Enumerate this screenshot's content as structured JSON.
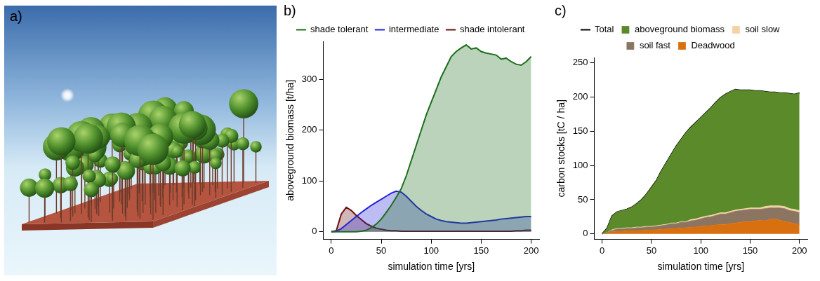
{
  "image_panel": {
    "panel": "a)"
  },
  "chart_data": [
    {
      "panel": "b)",
      "type": "area",
      "stacked": false,
      "grid": false,
      "legend": "top",
      "xlabel": "simulation time [yrs]",
      "ylabel": "aboveground biomass [t/ha]",
      "xlim": [
        -8,
        208
      ],
      "xticks": [
        0,
        50,
        100,
        150,
        200
      ],
      "ylim": [
        -15,
        375
      ],
      "yticks": [
        0,
        100,
        200,
        300
      ],
      "x": [
        0,
        5,
        10,
        15,
        20,
        25,
        30,
        35,
        40,
        45,
        50,
        55,
        60,
        65,
        70,
        75,
        80,
        85,
        90,
        95,
        100,
        105,
        110,
        115,
        120,
        125,
        130,
        135,
        140,
        145,
        150,
        155,
        160,
        165,
        170,
        175,
        180,
        185,
        190,
        195,
        200
      ],
      "series": [
        {
          "name": "shade tolerant",
          "color": "#1b6e1b",
          "values": [
            0,
            0,
            0,
            0,
            0,
            0,
            1,
            3,
            8,
            15,
            25,
            38,
            52,
            68,
            85,
            110,
            140,
            170,
            200,
            230,
            255,
            280,
            305,
            325,
            345,
            355,
            362,
            368,
            360,
            362,
            355,
            352,
            350,
            348,
            340,
            342,
            335,
            330,
            328,
            335,
            345
          ]
        },
        {
          "name": "intermediate",
          "color": "#2424d6",
          "values": [
            0,
            1,
            6,
            14,
            22,
            30,
            38,
            45,
            52,
            58,
            64,
            70,
            76,
            80,
            78,
            70,
            60,
            50,
            42,
            35,
            30,
            25,
            22,
            20,
            19,
            18,
            17,
            17,
            18,
            19,
            20,
            21,
            22,
            23,
            25,
            26,
            27,
            28,
            29,
            30,
            30
          ]
        },
        {
          "name": "shade intolerant",
          "color": "#6b0f0f",
          "values": [
            0,
            2,
            35,
            48,
            42,
            32,
            24,
            16,
            11,
            7,
            5,
            3,
            2,
            2,
            1,
            1,
            1,
            1,
            1,
            1,
            1,
            1,
            1,
            1,
            1,
            1,
            1,
            1,
            1,
            1,
            1,
            1,
            1,
            1,
            1,
            1,
            1,
            2,
            2,
            3,
            3
          ]
        }
      ]
    },
    {
      "panel": "c)",
      "type": "area",
      "stacked": true,
      "grid": false,
      "legend": "top",
      "xlabel": "simulation time [yrs]",
      "ylabel": "carbon stocks [tC / ha]",
      "xlim": [
        -8,
        208
      ],
      "xticks": [
        0,
        50,
        100,
        150,
        200
      ],
      "ylim": [
        -8,
        258
      ],
      "yticks": [
        0,
        50,
        100,
        150,
        200,
        250
      ],
      "x": [
        0,
        5,
        10,
        15,
        20,
        25,
        30,
        35,
        40,
        45,
        50,
        55,
        60,
        65,
        70,
        75,
        80,
        85,
        90,
        95,
        100,
        105,
        110,
        115,
        120,
        125,
        130,
        135,
        140,
        145,
        150,
        155,
        160,
        165,
        170,
        175,
        180,
        185,
        190,
        195,
        200
      ],
      "series": [
        {
          "name": "Total",
          "type": "line",
          "color": "#000000",
          "values": [
            0,
            8,
            26,
            32,
            34,
            36,
            39,
            44,
            50,
            58,
            68,
            78,
            92,
            104,
            116,
            128,
            138,
            148,
            156,
            163,
            170,
            177,
            184,
            192,
            199,
            204,
            208,
            211,
            210,
            210,
            210,
            209,
            209,
            208,
            207,
            207,
            206,
            206,
            205,
            204,
            206
          ]
        },
        {
          "name": "aboveground biomass",
          "color": "#5b8a2b",
          "values": [
            0,
            6,
            20,
            24,
            26,
            27,
            30,
            34,
            40,
            47,
            57,
            66,
            79,
            90,
            100,
            112,
            120,
            130,
            135,
            141,
            146,
            151,
            157,
            163,
            168,
            173,
            175,
            176,
            174,
            173,
            172,
            171,
            171,
            168,
            166,
            166,
            165,
            166,
            168,
            168,
            172
          ]
        },
        {
          "name": "soil slow",
          "color": "#f3d3a4",
          "values": [
            0,
            0,
            1,
            1,
            1,
            1,
            1,
            1,
            1,
            1,
            1,
            1,
            1,
            1,
            1,
            1,
            1,
            1,
            2,
            2,
            2,
            2,
            2,
            2,
            2,
            2,
            2,
            2,
            2,
            2,
            2,
            2,
            2,
            3,
            3,
            3,
            3,
            3,
            3,
            3,
            3
          ]
        },
        {
          "name": "soil fast",
          "color": "#8b7560",
          "values": [
            0,
            1,
            2,
            3,
            3,
            3,
            3,
            4,
            4,
            4,
            4,
            5,
            5,
            6,
            7,
            7,
            8,
            8,
            9,
            10,
            11,
            12,
            13,
            14,
            15,
            15,
            16,
            17,
            17,
            17,
            18,
            17,
            16,
            18,
            17,
            16,
            18,
            19,
            17,
            18,
            17
          ]
        },
        {
          "name": "Deadwood",
          "color": "#d9700f",
          "values": [
            0,
            1,
            3,
            4,
            4,
            5,
            5,
            5,
            5,
            6,
            6,
            6,
            7,
            7,
            8,
            8,
            9,
            9,
            10,
            10,
            11,
            12,
            12,
            13,
            14,
            14,
            15,
            16,
            17,
            18,
            18,
            19,
            20,
            19,
            21,
            22,
            20,
            18,
            17,
            15,
            14
          ]
        }
      ]
    }
  ]
}
